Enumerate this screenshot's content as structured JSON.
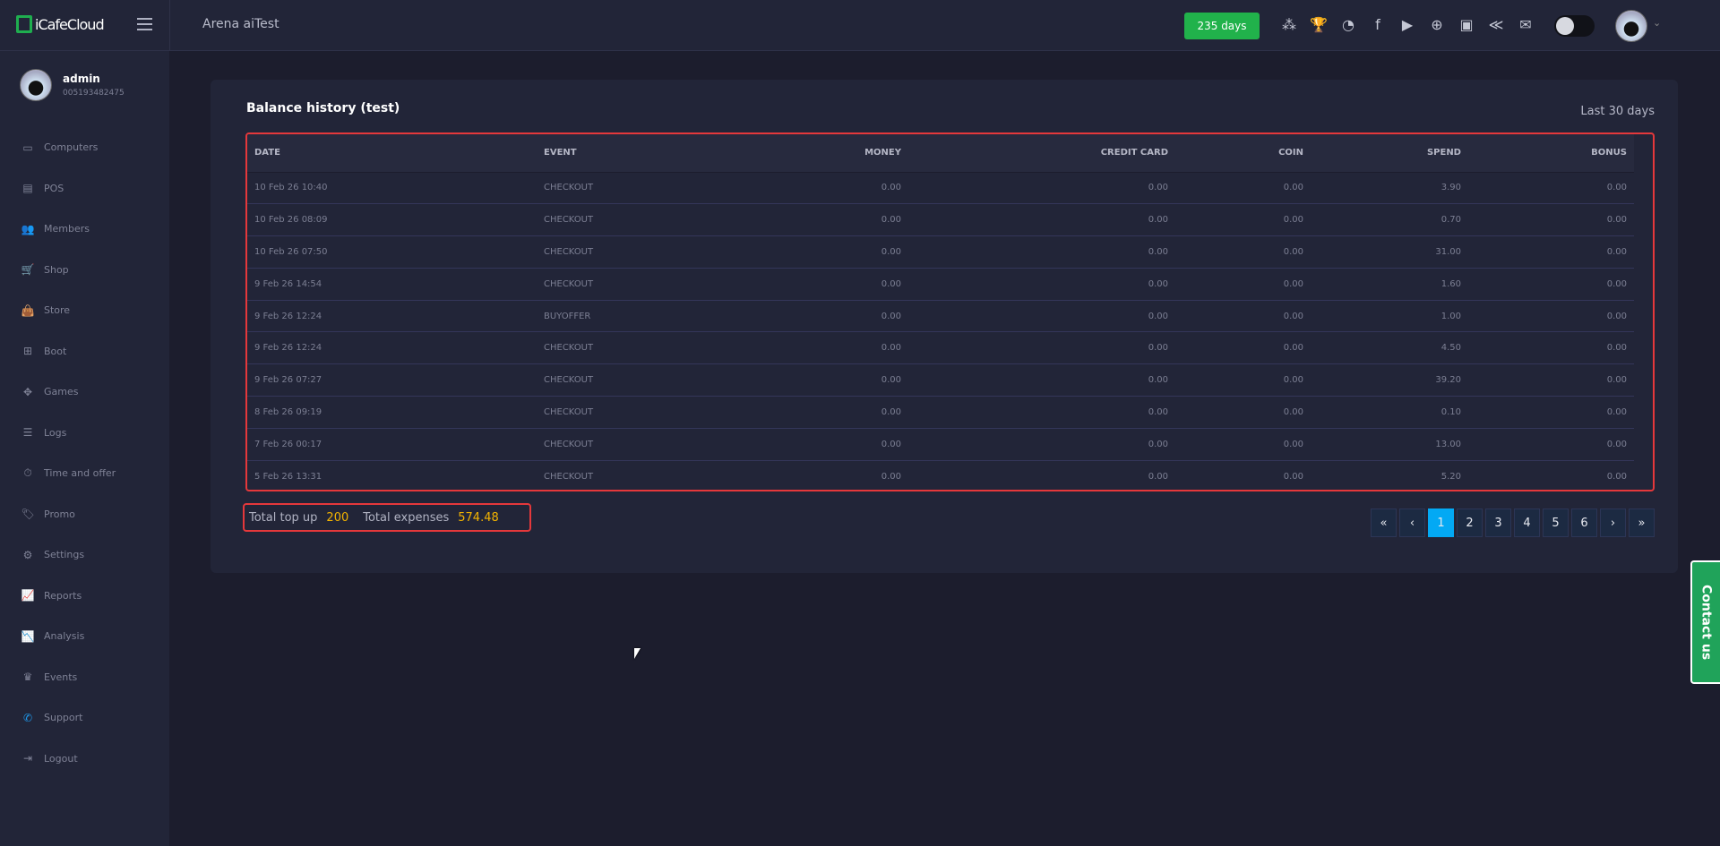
{
  "header": {
    "brand": "iCafeCloud",
    "title": "Arena aiTest",
    "license_badge": "235 days",
    "icons": [
      "ranking-icon",
      "trophy-icon",
      "rss-icon",
      "facebook-icon",
      "youtube-icon",
      "globe-icon",
      "icafe-icon",
      "partner-icon",
      "mail-icon"
    ]
  },
  "profile": {
    "name": "admin",
    "id": "005193482475"
  },
  "sidebar": {
    "items": [
      {
        "label": "Computers",
        "icon": "monitor-icon",
        "glyph": "▭"
      },
      {
        "label": "POS",
        "icon": "cash-register-icon",
        "glyph": "▤"
      },
      {
        "label": "Members",
        "icon": "users-icon",
        "glyph": "👥"
      },
      {
        "label": "Shop",
        "icon": "cart-icon",
        "glyph": "🛒"
      },
      {
        "label": "Store",
        "icon": "bag-icon",
        "glyph": "👜"
      },
      {
        "label": "Boot",
        "icon": "windows-icon",
        "glyph": "⊞"
      },
      {
        "label": "Games",
        "icon": "gamepad-icon",
        "glyph": "✥"
      },
      {
        "label": "Logs",
        "icon": "list-icon",
        "glyph": "☰"
      },
      {
        "label": "Time and offer",
        "icon": "stopwatch-icon",
        "glyph": "⏱"
      },
      {
        "label": "Promo",
        "icon": "tag-icon",
        "glyph": "🏷"
      },
      {
        "label": "Settings",
        "icon": "gear-icon",
        "glyph": "⚙"
      },
      {
        "label": "Reports",
        "icon": "line-chart-icon",
        "glyph": "📈"
      },
      {
        "label": "Analysis",
        "icon": "area-chart-icon",
        "glyph": "📉"
      },
      {
        "label": "Events",
        "icon": "crown-icon",
        "glyph": "♛"
      },
      {
        "label": "Support",
        "icon": "phone-icon",
        "glyph": "✆"
      },
      {
        "label": "Logout",
        "icon": "logout-icon",
        "glyph": "⇥"
      }
    ]
  },
  "main": {
    "title": "Balance history (test)",
    "range": "Last 30 days",
    "columns": [
      "DATE",
      "EVENT",
      "MONEY",
      "CREDIT CARD",
      "COIN",
      "SPEND",
      "BONUS"
    ],
    "rows": [
      [
        "10 Feb 26 10:40",
        "CHECKOUT",
        "0.00",
        "0.00",
        "0.00",
        "3.90",
        "0.00"
      ],
      [
        "10 Feb 26 08:09",
        "CHECKOUT",
        "0.00",
        "0.00",
        "0.00",
        "0.70",
        "0.00"
      ],
      [
        "10 Feb 26 07:50",
        "CHECKOUT",
        "0.00",
        "0.00",
        "0.00",
        "31.00",
        "0.00"
      ],
      [
        "9 Feb 26 14:54",
        "CHECKOUT",
        "0.00",
        "0.00",
        "0.00",
        "1.60",
        "0.00"
      ],
      [
        "9 Feb 26 12:24",
        "BUYOFFER",
        "0.00",
        "0.00",
        "0.00",
        "1.00",
        "0.00"
      ],
      [
        "9 Feb 26 12:24",
        "CHECKOUT",
        "0.00",
        "0.00",
        "0.00",
        "4.50",
        "0.00"
      ],
      [
        "9 Feb 26 07:27",
        "CHECKOUT",
        "0.00",
        "0.00",
        "0.00",
        "39.20",
        "0.00"
      ],
      [
        "8 Feb 26 09:19",
        "CHECKOUT",
        "0.00",
        "0.00",
        "0.00",
        "0.10",
        "0.00"
      ],
      [
        "7 Feb 26 00:17",
        "CHECKOUT",
        "0.00",
        "0.00",
        "0.00",
        "13.00",
        "0.00"
      ],
      [
        "5 Feb 26 13:31",
        "CHECKOUT",
        "0.00",
        "0.00",
        "0.00",
        "5.20",
        "0.00"
      ]
    ],
    "totals": {
      "topup_label": "Total top up",
      "topup": "200",
      "expenses_label": "Total expenses",
      "expenses": "574.48"
    },
    "pagination": {
      "first": "«",
      "prev": "‹",
      "pages": [
        "1",
        "2",
        "3",
        "4",
        "5",
        "6"
      ],
      "current": "1",
      "next": "›",
      "last": "»"
    }
  },
  "contact": "Contact us",
  "colors": {
    "accent": "#03a9f4",
    "badge": "#21b24b",
    "highlight": "#e5383b",
    "total_value": "#f4b400"
  }
}
